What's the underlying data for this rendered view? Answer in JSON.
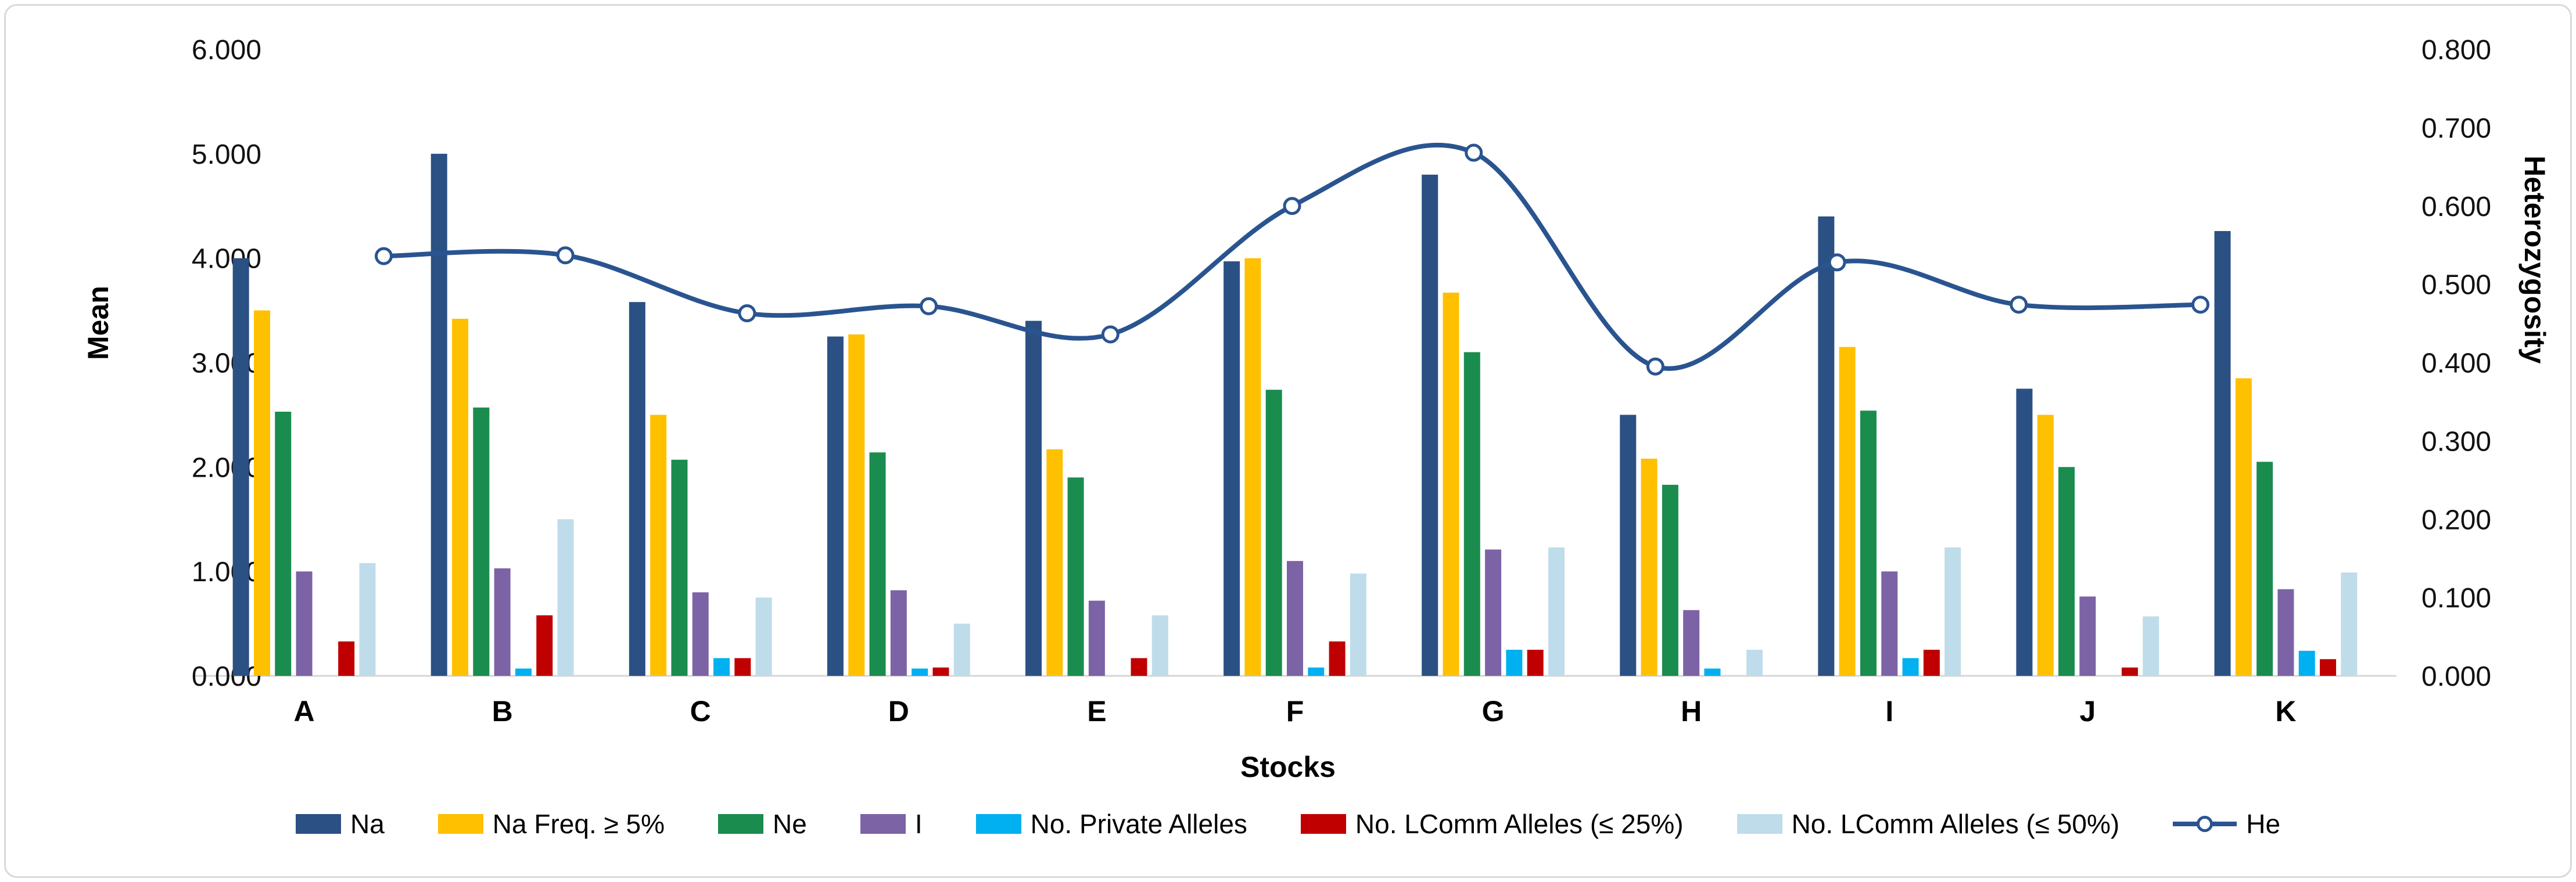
{
  "chart_data": {
    "type": "combo-bar-line",
    "title": "",
    "categories": [
      "A",
      "B",
      "C",
      "D",
      "E",
      "F",
      "G",
      "H",
      "I",
      "J",
      "K"
    ],
    "bar_series": [
      {
        "name": "Na",
        "color": "#2B5083",
        "values": [
          4.0,
          5.0,
          3.58,
          3.25,
          3.4,
          3.97,
          4.8,
          2.5,
          4.4,
          2.75,
          4.26
        ]
      },
      {
        "name": "Na Freq. ≥ 5%",
        "color": "#FFC000",
        "values": [
          3.5,
          3.42,
          2.5,
          3.27,
          2.17,
          4.0,
          3.67,
          2.08,
          3.15,
          2.5,
          2.85
        ]
      },
      {
        "name": "Ne",
        "color": "#1A8C4E",
        "values": [
          2.53,
          2.57,
          2.07,
          2.14,
          1.9,
          2.74,
          3.1,
          1.83,
          2.54,
          2.0,
          2.05
        ]
      },
      {
        "name": "I",
        "color": "#7C63A5",
        "values": [
          1.0,
          1.03,
          0.8,
          0.82,
          0.72,
          1.1,
          1.21,
          0.63,
          1.0,
          0.76,
          0.83
        ]
      },
      {
        "name": "No. Private Alleles",
        "color": "#00B0F0",
        "values": [
          0.0,
          0.07,
          0.17,
          0.07,
          0.0,
          0.08,
          0.25,
          0.07,
          0.17,
          0.0,
          0.24
        ]
      },
      {
        "name": "No. LComm Alleles (≤ 25%)",
        "color": "#C00000",
        "values": [
          0.33,
          0.58,
          0.17,
          0.08,
          0.17,
          0.33,
          0.25,
          0.0,
          0.25,
          0.08,
          0.16
        ]
      },
      {
        "name": "No. LComm Alleles (≤ 50%)",
        "color": "#BFDCEA",
        "values": [
          1.08,
          1.5,
          0.75,
          0.5,
          0.58,
          0.98,
          1.23,
          0.25,
          1.23,
          0.57,
          0.99
        ]
      }
    ],
    "line_series": {
      "name": "He",
      "color": "#2A5490",
      "marker": "open-circle",
      "values": [
        0.536,
        0.537,
        0.463,
        0.472,
        0.436,
        0.6,
        0.668,
        0.395,
        0.528,
        0.474,
        0.474
      ]
    },
    "left_axis": {
      "label": "Mean",
      "min": 0,
      "max": 6,
      "ticks": [
        "0.000",
        "1.000",
        "2.000",
        "3.000",
        "4.000",
        "5.000",
        "6.000"
      ]
    },
    "right_axis": {
      "label": "Heterozygosity",
      "min": 0,
      "max": 0.8,
      "ticks": [
        "0.000",
        "0.100",
        "0.200",
        "0.300",
        "0.400",
        "0.500",
        "0.600",
        "0.700",
        "0.800"
      ]
    },
    "x_axis": {
      "label": "Stocks"
    },
    "legend_position": "bottom",
    "grid": false
  }
}
